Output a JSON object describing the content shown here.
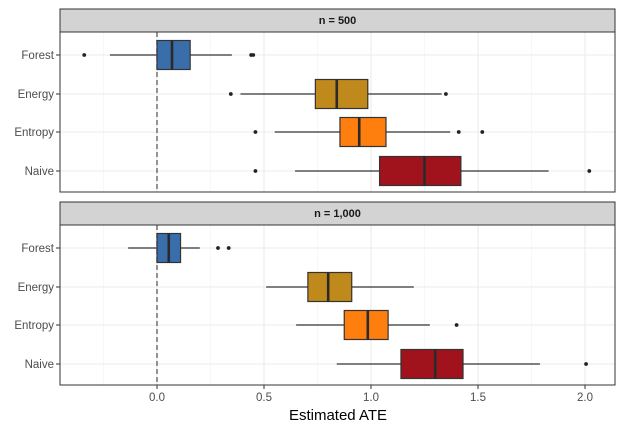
{
  "chart_data": {
    "type": "boxplot",
    "title": "",
    "xlabel": "Estimated ATE",
    "ylabel": "",
    "xlim": [
      -0.46,
      2.15
    ],
    "x_ticks": [
      0.0,
      0.5,
      1.0,
      1.5,
      2.0
    ],
    "x_tick_labels": [
      "0.0",
      "0.5",
      "1.0",
      "1.5",
      "2.0"
    ],
    "minor_grid": [
      -0.25,
      0.25,
      0.75,
      1.25,
      1.75
    ],
    "grid": true,
    "reference_line": {
      "x": 0,
      "style": "dashed"
    },
    "categories": [
      "Forest",
      "Energy",
      "Entropy",
      "Naive"
    ],
    "colors": {
      "Forest": "#3A6EAA",
      "Energy": "#C0891B",
      "Entropy": "#FF7F0E",
      "Naive": "#A0121C"
    },
    "panels": [
      {
        "label": "n = 500",
        "boxes": [
          {
            "category": "Forest",
            "whisker_low": -0.22,
            "q1": 0.0,
            "median": 0.07,
            "q3": 0.155,
            "whisker_high": 0.35,
            "outliers": [
              -0.34,
              0.44,
              0.45
            ]
          },
          {
            "category": "Energy",
            "whisker_low": 0.39,
            "q1": 0.74,
            "median": 0.84,
            "q3": 0.985,
            "whisker_high": 1.33,
            "outliers": [
              0.345,
              1.35
            ]
          },
          {
            "category": "Entropy",
            "whisker_low": 0.55,
            "q1": 0.855,
            "median": 0.945,
            "q3": 1.07,
            "whisker_high": 1.37,
            "outliers": [
              0.46,
              1.41,
              1.52
            ]
          },
          {
            "category": "Naive",
            "whisker_low": 0.645,
            "q1": 1.04,
            "median": 1.25,
            "q3": 1.42,
            "whisker_high": 1.83,
            "outliers": [
              0.46,
              2.02
            ]
          }
        ]
      },
      {
        "label": "n = 1,000",
        "boxes": [
          {
            "category": "Forest",
            "whisker_low": -0.135,
            "q1": 0.0,
            "median": 0.055,
            "q3": 0.11,
            "whisker_high": 0.2,
            "outliers": [
              0.285,
              0.335
            ]
          },
          {
            "category": "Energy",
            "whisker_low": 0.51,
            "q1": 0.705,
            "median": 0.8,
            "q3": 0.91,
            "whisker_high": 1.2,
            "outliers": []
          },
          {
            "category": "Entropy",
            "whisker_low": 0.65,
            "q1": 0.875,
            "median": 0.985,
            "q3": 1.08,
            "whisker_high": 1.275,
            "outliers": [
              1.4
            ]
          },
          {
            "category": "Naive",
            "whisker_low": 0.84,
            "q1": 1.14,
            "median": 1.3,
            "q3": 1.43,
            "whisker_high": 1.79,
            "outliers": [
              2.005
            ]
          }
        ]
      }
    ]
  }
}
